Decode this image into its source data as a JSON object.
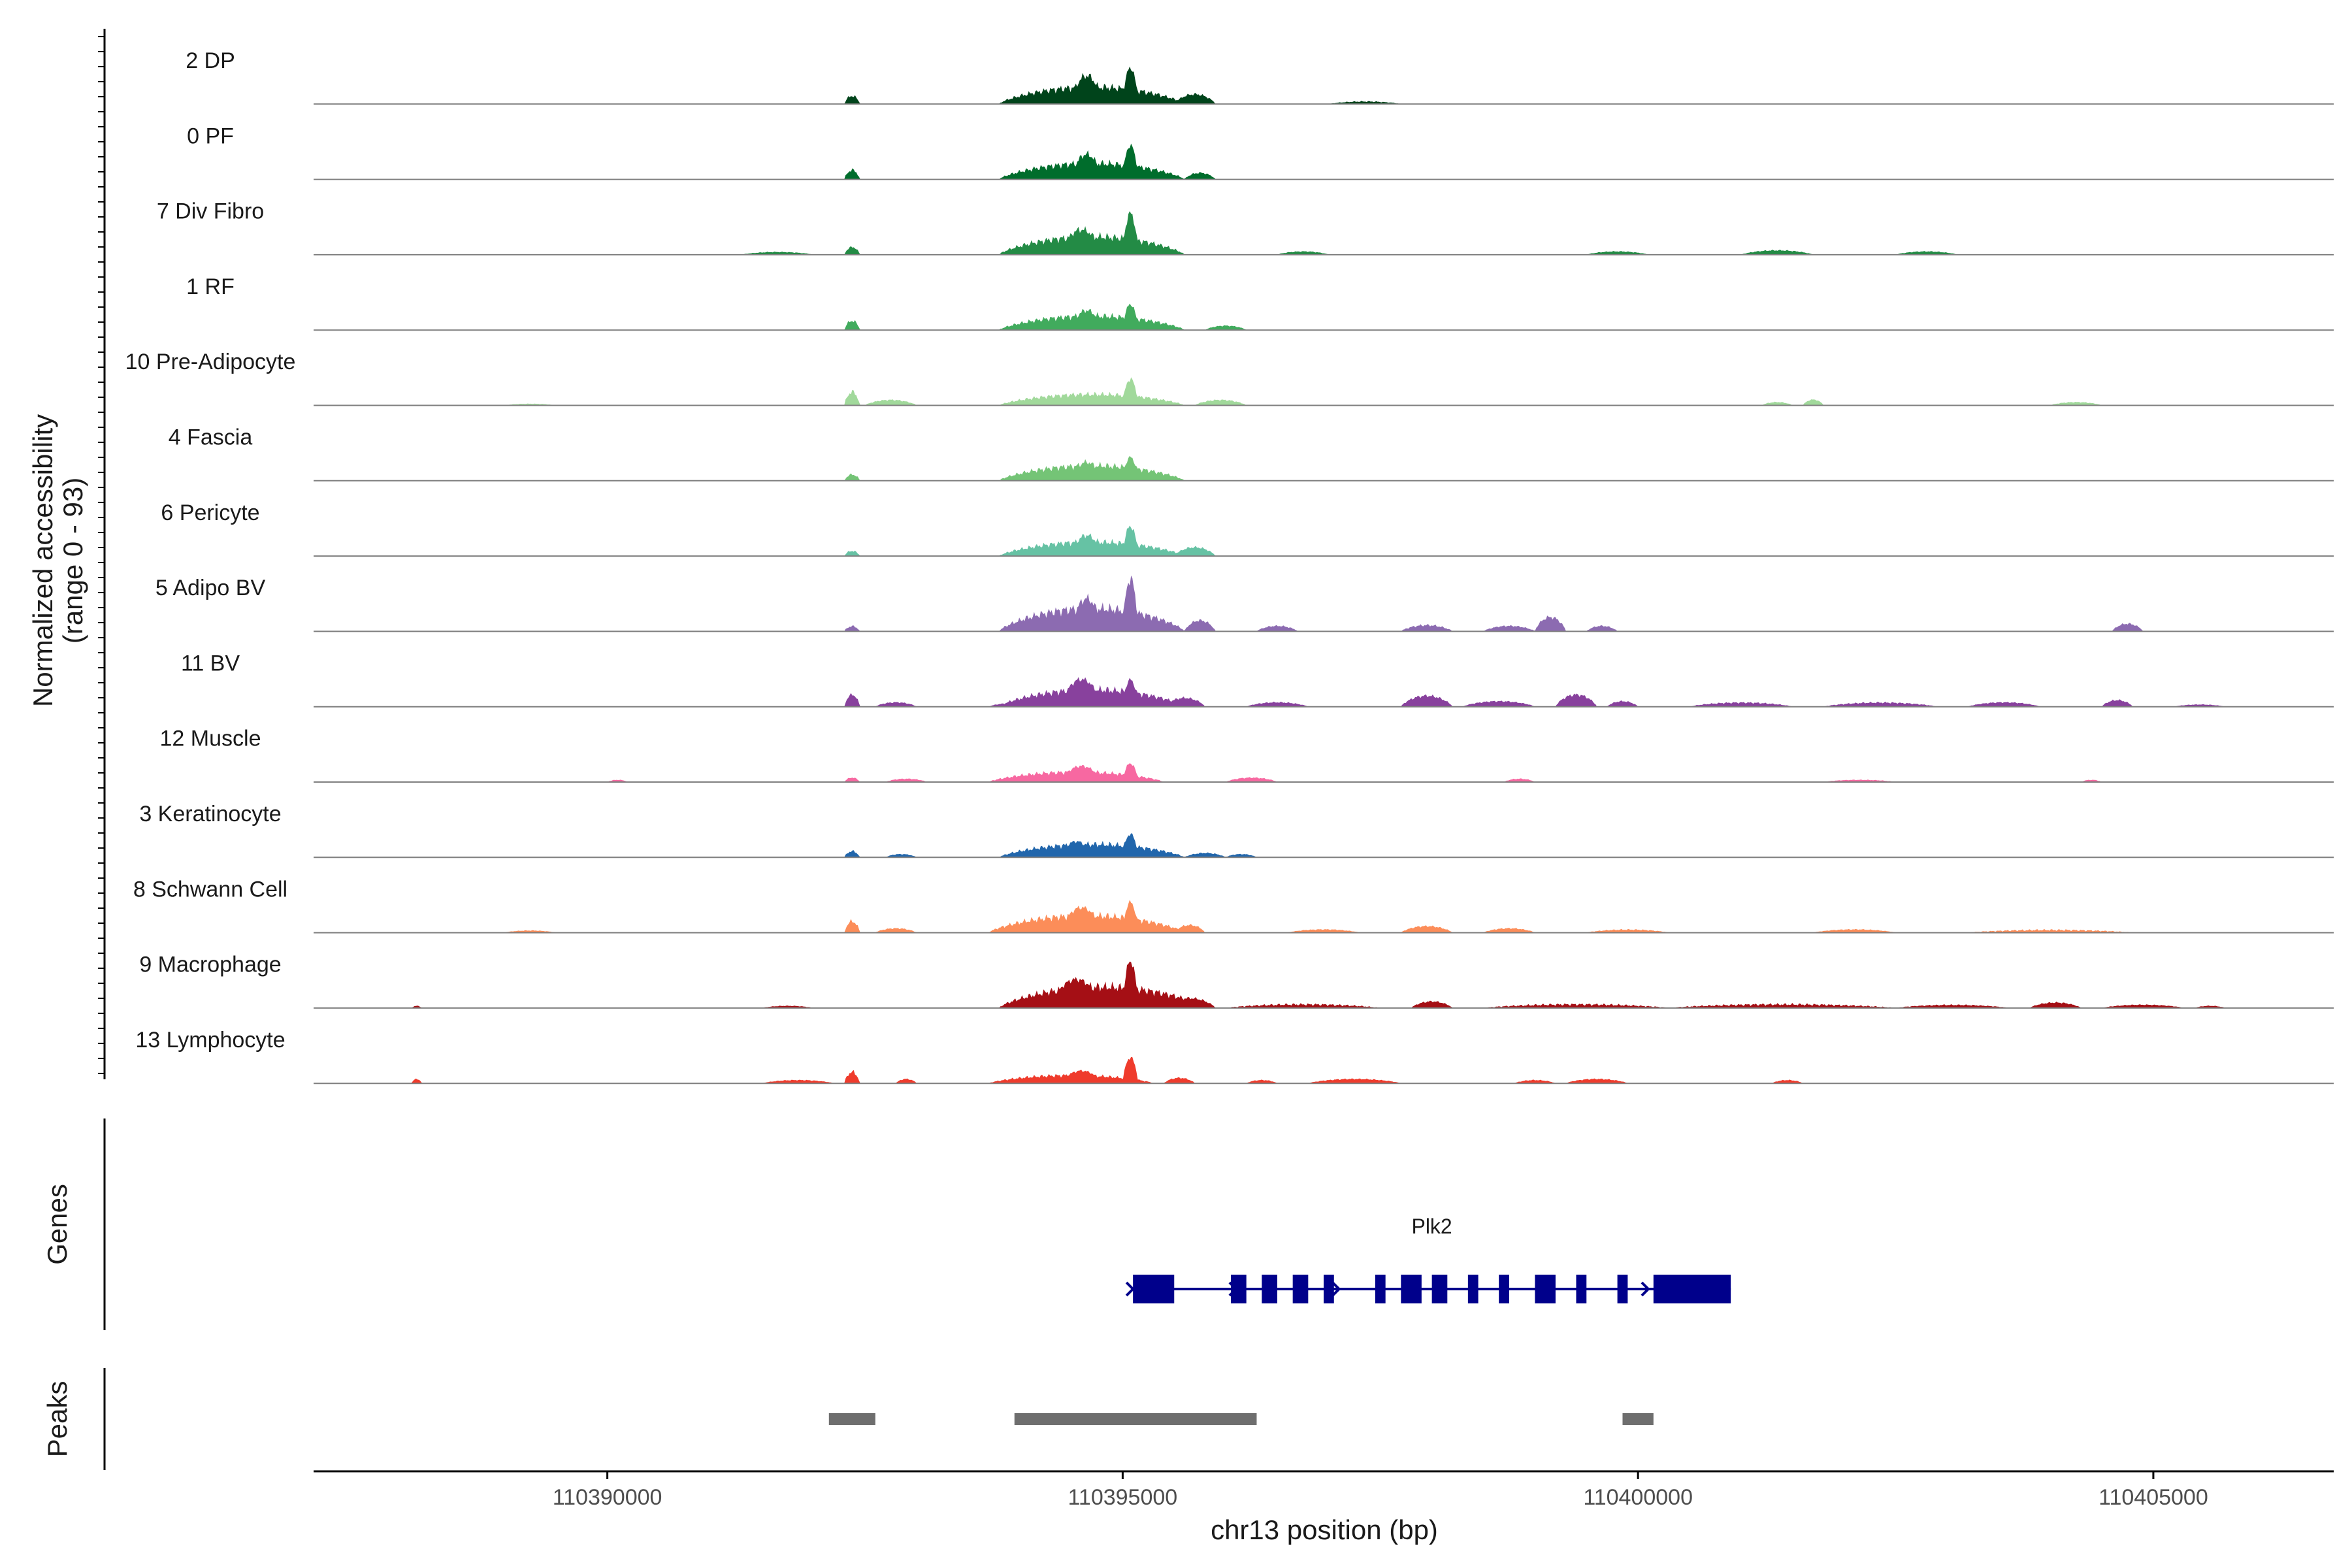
{
  "chart_data": {
    "type": "area",
    "title": "",
    "xlabel": "chr13 position (bp)",
    "ylabel": [
      "Normalized accessibility",
      "(range 0 - 93)"
    ],
    "ylim": [
      0,
      93
    ],
    "xlim": [
      110387150,
      110406750
    ],
    "x_ticks": [
      110390000,
      110395000,
      110400000,
      110405000
    ],
    "x_tick_labels": [
      "110390000",
      "110395000",
      "110400000",
      "110405000"
    ],
    "tracks": [
      {
        "label": "2 DP",
        "color": "#00441B",
        "peaks": [
          [
            110392300,
            110392450,
            16,
            40
          ],
          [
            110393800,
            110395600,
            34,
            45
          ],
          [
            110394500,
            110394800,
            52,
            30
          ],
          [
            110395000,
            110395150,
            62,
            18
          ],
          [
            110395500,
            110395900,
            18,
            30
          ],
          [
            110397000,
            110397700,
            5,
            40
          ]
        ]
      },
      {
        "label": "0 PF",
        "color": "#006D2C",
        "peaks": [
          [
            110392300,
            110392450,
            18,
            40
          ],
          [
            110393800,
            110395600,
            32,
            45
          ],
          [
            110394500,
            110394800,
            46,
            30
          ],
          [
            110395000,
            110395150,
            58,
            18
          ],
          [
            110395600,
            110395900,
            12,
            30
          ]
        ]
      },
      {
        "label": "7 Div Fibro",
        "color": "#238B45",
        "peaks": [
          [
            110391300,
            110392000,
            5,
            30
          ],
          [
            110392300,
            110392450,
            14,
            30
          ],
          [
            110393800,
            110395600,
            36,
            45
          ],
          [
            110394400,
            110394800,
            46,
            30
          ],
          [
            110395000,
            110395150,
            72,
            22
          ],
          [
            110396500,
            110397000,
            6,
            30
          ],
          [
            110399500,
            110400100,
            6,
            30
          ],
          [
            110401000,
            110401700,
            8,
            30
          ],
          [
            110402500,
            110403100,
            6,
            30
          ]
        ]
      },
      {
        "label": "1 RF",
        "color": "#41AB5D",
        "peaks": [
          [
            110392300,
            110392450,
            18,
            40
          ],
          [
            110393800,
            110395600,
            28,
            45
          ],
          [
            110394500,
            110394800,
            36,
            30
          ],
          [
            110395000,
            110395150,
            44,
            18
          ],
          [
            110395800,
            110396200,
            8,
            30
          ]
        ]
      },
      {
        "label": "10 Pre-Adipocyte",
        "color": "#A1D99B",
        "peaks": [
          [
            110389000,
            110389500,
            3,
            30
          ],
          [
            110392300,
            110392450,
            26,
            40
          ],
          [
            110392500,
            110393000,
            10,
            30
          ],
          [
            110393800,
            110395600,
            22,
            45
          ],
          [
            110395000,
            110395150,
            46,
            22
          ],
          [
            110395700,
            110396200,
            10,
            30
          ],
          [
            110401200,
            110401500,
            6,
            30
          ],
          [
            110401600,
            110401800,
            10,
            20
          ],
          [
            110404000,
            110404500,
            6,
            30
          ]
        ]
      },
      {
        "label": "4 Fascia",
        "color": "#74C476",
        "peaks": [
          [
            110392300,
            110392450,
            12,
            40
          ],
          [
            110393800,
            110395600,
            30,
            45
          ],
          [
            110394500,
            110394800,
            34,
            30
          ],
          [
            110395000,
            110395150,
            40,
            18
          ]
        ]
      },
      {
        "label": "6 Pericyte",
        "color": "#66C2A4",
        "peaks": [
          [
            110392300,
            110392450,
            10,
            40
          ],
          [
            110393800,
            110395600,
            28,
            45
          ],
          [
            110394500,
            110394800,
            38,
            30
          ],
          [
            110395000,
            110395150,
            52,
            22
          ],
          [
            110395500,
            110395900,
            16,
            30
          ]
        ]
      },
      {
        "label": "5 Adipo BV",
        "color": "#8C6BB1",
        "peaks": [
          [
            110392300,
            110392450,
            10,
            40
          ],
          [
            110393800,
            110395600,
            46,
            45
          ],
          [
            110394500,
            110394800,
            60,
            30
          ],
          [
            110395000,
            110395150,
            93,
            25
          ],
          [
            110395600,
            110395900,
            20,
            30
          ],
          [
            110396300,
            110396700,
            10,
            30
          ],
          [
            110397700,
            110398200,
            12,
            40
          ],
          [
            110398500,
            110399000,
            10,
            30
          ],
          [
            110399000,
            110399300,
            26,
            30
          ],
          [
            110399500,
            110399800,
            10,
            30
          ],
          [
            110404600,
            110404900,
            14,
            30
          ]
        ]
      },
      {
        "label": "11 BV",
        "color": "#88419D",
        "peaks": [
          [
            110392300,
            110392450,
            22,
            30
          ],
          [
            110392600,
            110393000,
            8,
            30
          ],
          [
            110393700,
            110394100,
            6,
            30
          ],
          [
            110393800,
            110395600,
            34,
            45
          ],
          [
            110394400,
            110394800,
            48,
            22
          ],
          [
            110395000,
            110395150,
            46,
            18
          ],
          [
            110395400,
            110395800,
            16,
            30
          ],
          [
            110396200,
            110396800,
            8,
            30
          ],
          [
            110397700,
            110398200,
            20,
            30
          ],
          [
            110398300,
            110399000,
            10,
            30
          ],
          [
            110399200,
            110399600,
            22,
            30
          ],
          [
            110399700,
            110400000,
            10,
            30
          ],
          [
            110400500,
            110401500,
            8,
            40
          ],
          [
            110401800,
            110402900,
            8,
            40
          ],
          [
            110403200,
            110403900,
            8,
            30
          ],
          [
            110404500,
            110404800,
            12,
            30
          ],
          [
            110405200,
            110405700,
            4,
            30
          ]
        ]
      },
      {
        "label": "12 Muscle",
        "color": "#F768A1",
        "peaks": [
          [
            110390000,
            110390200,
            4,
            30
          ],
          [
            110392300,
            110392450,
            8,
            30
          ],
          [
            110392700,
            110393100,
            6,
            30
          ],
          [
            110393700,
            110395400,
            20,
            45
          ],
          [
            110394400,
            110394800,
            28,
            22
          ],
          [
            110395000,
            110395150,
            32,
            18
          ],
          [
            110396000,
            110396500,
            8,
            30
          ],
          [
            110398700,
            110399000,
            6,
            30
          ],
          [
            110401800,
            110402500,
            4,
            30
          ],
          [
            110404300,
            110404500,
            4,
            30
          ]
        ]
      },
      {
        "label": "3 Keratinocyte",
        "color": "#2166AC",
        "peaks": [
          [
            110392300,
            110392450,
            12,
            40
          ],
          [
            110392700,
            110393000,
            6,
            30
          ],
          [
            110393800,
            110395600,
            26,
            45
          ],
          [
            110394400,
            110394700,
            28,
            22
          ],
          [
            110395000,
            110395150,
            40,
            18
          ],
          [
            110395600,
            110396000,
            8,
            30
          ],
          [
            110396000,
            110396300,
            6,
            30
          ]
        ]
      },
      {
        "label": "8 Schwann Cell",
        "color": "#FC8D59",
        "peaks": [
          [
            110389000,
            110389500,
            4,
            30
          ],
          [
            110392300,
            110392450,
            22,
            40
          ],
          [
            110392600,
            110393000,
            8,
            30
          ],
          [
            110393700,
            110395600,
            34,
            45
          ],
          [
            110394400,
            110394800,
            44,
            22
          ],
          [
            110395000,
            110395150,
            52,
            18
          ],
          [
            110395500,
            110395800,
            14,
            30
          ],
          [
            110396600,
            110397300,
            6,
            30
          ],
          [
            110397700,
            110398200,
            12,
            30
          ],
          [
            110398500,
            110399000,
            8,
            30
          ],
          [
            110399500,
            110400300,
            6,
            40
          ],
          [
            110401700,
            110402500,
            6,
            30
          ],
          [
            110403200,
            110404800,
            6,
            60
          ]
        ]
      },
      {
        "label": "9 Macrophage",
        "color": "#A50F15",
        "peaks": [
          [
            110388100,
            110388200,
            4,
            30
          ],
          [
            110391500,
            110392000,
            4,
            30
          ],
          [
            110393800,
            110395800,
            42,
            45
          ],
          [
            110394300,
            110394800,
            50,
            22
          ],
          [
            110395000,
            110395150,
            80,
            18
          ],
          [
            110395400,
            110395900,
            18,
            30
          ],
          [
            110396000,
            110397500,
            8,
            60
          ],
          [
            110397800,
            110398200,
            12,
            30
          ],
          [
            110398500,
            110400300,
            8,
            60
          ],
          [
            110400300,
            110402500,
            8,
            60
          ],
          [
            110402500,
            110403600,
            6,
            40
          ],
          [
            110403800,
            110404300,
            10,
            30
          ],
          [
            110404500,
            110405300,
            6,
            30
          ],
          [
            110405400,
            110405700,
            4,
            30
          ]
        ]
      },
      {
        "label": "13 Lymphocyte",
        "color": "#EF3B2C",
        "peaks": [
          [
            110388100,
            110388200,
            8,
            30
          ],
          [
            110391500,
            110392200,
            6,
            30
          ],
          [
            110392300,
            110392450,
            22,
            40
          ],
          [
            110392800,
            110393000,
            8,
            30
          ],
          [
            110393700,
            110395300,
            16,
            45
          ],
          [
            110394400,
            110394800,
            22,
            22
          ],
          [
            110395000,
            110395150,
            44,
            18
          ],
          [
            110395400,
            110395700,
            10,
            30
          ],
          [
            110396200,
            110396500,
            6,
            30
          ],
          [
            110396800,
            110397700,
            8,
            30
          ],
          [
            110398800,
            110399200,
            6,
            30
          ],
          [
            110399300,
            110399900,
            8,
            30
          ],
          [
            110401300,
            110401600,
            6,
            30
          ]
        ]
      }
    ],
    "genes": {
      "title": "Genes",
      "name": "Plk2",
      "color": "#00008B",
      "strand": "+",
      "start": 110395100,
      "end": 110400900,
      "exons": [
        [
          110395100,
          110395500
        ],
        [
          110396050,
          110396200
        ],
        [
          110396350,
          110396500
        ],
        [
          110396650,
          110396800
        ],
        [
          110396950,
          110397050
        ],
        [
          110397450,
          110397550
        ],
        [
          110397700,
          110397900
        ],
        [
          110398000,
          110398150
        ],
        [
          110398350,
          110398450
        ],
        [
          110398650,
          110398750
        ],
        [
          110399000,
          110399200
        ],
        [
          110399400,
          110399500
        ],
        [
          110399800,
          110399900
        ],
        [
          110400150,
          110400900
        ]
      ]
    },
    "peaks_track": {
      "title": "Peaks",
      "color": "#6E6E6E",
      "regions": [
        [
          110392150,
          110392600
        ],
        [
          110393950,
          110396300
        ],
        [
          110399850,
          110400150
        ]
      ]
    }
  }
}
